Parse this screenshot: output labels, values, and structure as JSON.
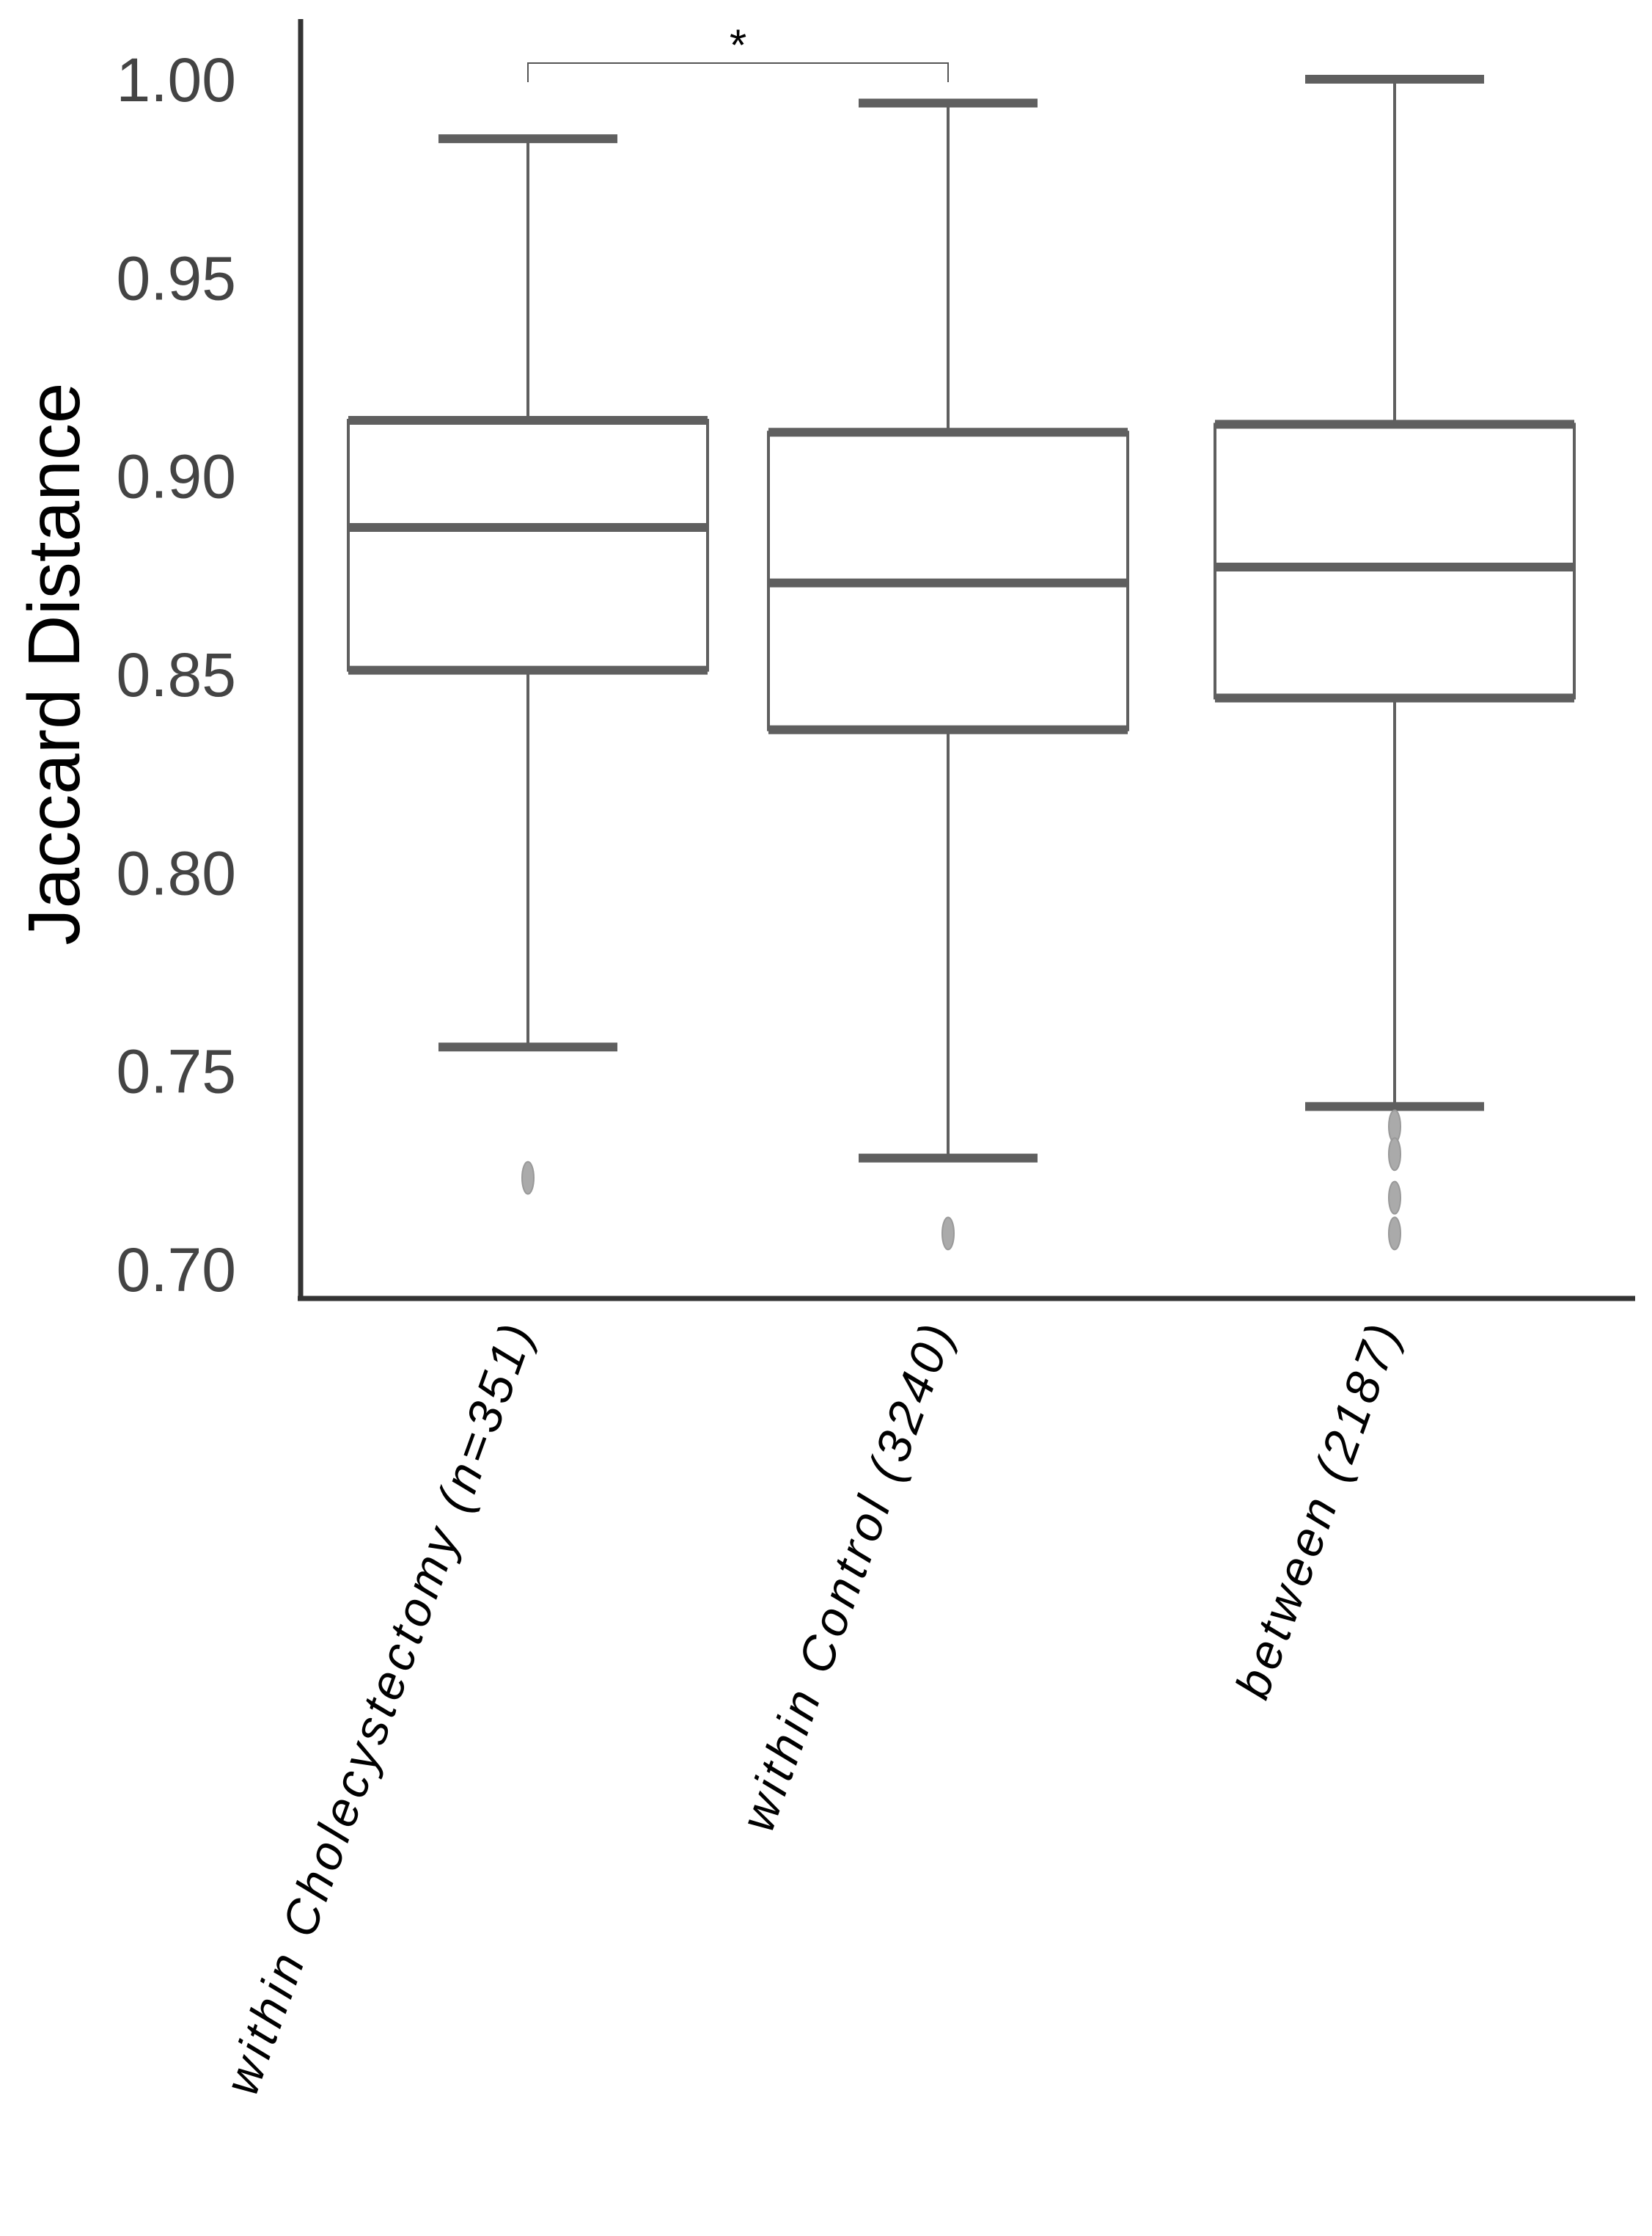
{
  "chart_data": {
    "type": "box",
    "title": "",
    "xlabel": "",
    "ylabel": "Jaccard Distance",
    "ylim": [
      0.7,
      1.0
    ],
    "yticks": [
      "0.70",
      "0.75",
      "0.80",
      "0.85",
      "0.90",
      "0.95",
      "1.00"
    ],
    "grid": false,
    "categories": [
      "within Cholecystectomy (n=351)",
      "within Control (3240)",
      "between (2187)"
    ],
    "boxes": [
      {
        "category": "within Cholecystectomy (n=351)",
        "whisker_low": 0.756,
        "q1": 0.851,
        "median": 0.887,
        "q3": 0.914,
        "whisker_high": 0.985,
        "outliers": [
          0.723
        ]
      },
      {
        "category": "within Control (3240)",
        "whisker_low": 0.728,
        "q1": 0.836,
        "median": 0.873,
        "q3": 0.911,
        "whisker_high": 0.994,
        "outliers": [
          0.709
        ]
      },
      {
        "category": "between (2187)",
        "whisker_low": 0.741,
        "q1": 0.844,
        "median": 0.877,
        "q3": 0.913,
        "whisker_high": 1.0,
        "outliers": [
          0.736,
          0.729,
          0.718,
          0.709
        ]
      }
    ],
    "significance": [
      {
        "from": 0,
        "to": 1,
        "label": "*"
      }
    ],
    "colors": {
      "box_stroke": "#5f5f5f",
      "axis": "#333333",
      "outlier": "#aaaaaa",
      "text": "#444444"
    }
  }
}
